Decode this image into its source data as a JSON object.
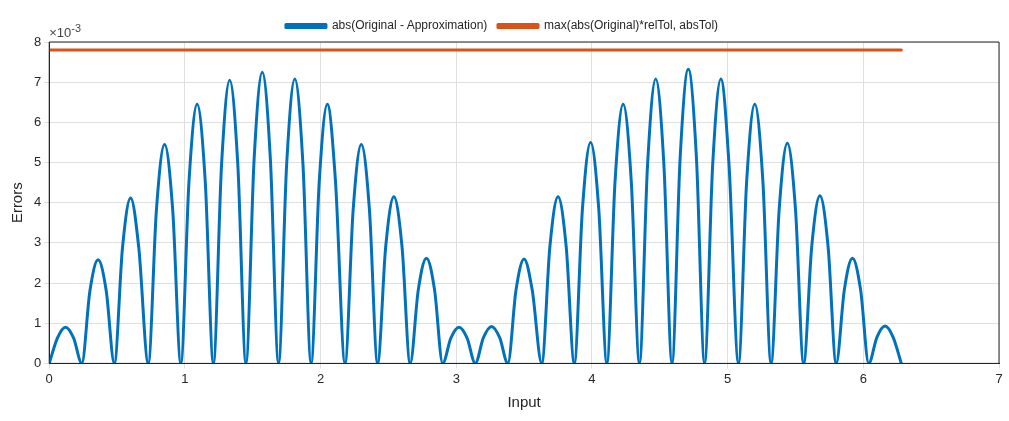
{
  "chart_data": {
    "type": "line",
    "xlabel": "Input",
    "ylabel": "Errors",
    "annotations": [
      "×10$^{-3}$"
    ],
    "xlim": [
      0,
      7
    ],
    "xticks": [
      0,
      1,
      2,
      3,
      4,
      5,
      6,
      7
    ],
    "ylim": [
      0,
      8
    ],
    "yticks": [
      0,
      1,
      2,
      3,
      4,
      5,
      6,
      7,
      8
    ],
    "grid": true,
    "legend": "top",
    "marker": "none",
    "line_style": "solid",
    "series": [
      {
        "name": "abs(Original - Approximation)",
        "color": "#0072bd",
        "x": [
          0,
          0.06,
          0.12,
          0.18,
          0.24,
          0.3,
          0.36,
          0.42,
          0.48,
          0.54,
          0.6,
          0.66,
          0.73,
          0.79,
          0.85,
          0.91,
          0.97,
          1.03,
          1.09,
          1.15,
          1.21,
          1.27,
          1.33,
          1.39,
          1.45,
          1.51,
          1.57,
          1.63,
          1.69,
          1.75,
          1.81,
          1.87,
          1.93,
          1.99,
          2.05,
          2.11,
          2.18,
          2.24,
          2.3,
          2.36,
          2.42,
          2.48,
          2.54,
          2.6,
          2.66,
          2.72,
          2.78,
          2.84,
          2.9,
          2.96,
          3.02,
          3.08,
          3.14,
          3.2,
          3.26,
          3.32,
          3.38,
          3.44,
          3.5,
          3.56,
          3.63,
          3.69,
          3.75,
          3.81,
          3.87,
          3.93,
          3.99,
          4.05,
          4.11,
          4.17,
          4.23,
          4.29,
          4.35,
          4.41,
          4.47,
          4.53,
          4.59,
          4.65,
          4.71,
          4.77,
          4.83,
          4.89,
          4.95,
          5.01,
          5.08,
          5.14,
          5.2,
          5.26,
          5.32,
          5.38,
          5.44,
          5.5,
          5.56,
          5.62,
          5.68,
          5.74,
          5.8,
          5.86,
          5.92,
          5.98,
          6.04,
          6.1,
          6.16,
          6.22,
          6.28
        ],
        "values": [
          0,
          0.63,
          0.9,
          0.63,
          0,
          1.81,
          2.58,
          1.81,
          0,
          2.88,
          4.12,
          2.88,
          0,
          3.82,
          5.45,
          3.82,
          0,
          4.52,
          6.45,
          4.52,
          0,
          4.94,
          7.05,
          4.94,
          0,
          5.08,
          7.25,
          5.08,
          0,
          4.96,
          7.08,
          4.96,
          0,
          4.52,
          6.45,
          4.52,
          0,
          3.82,
          5.45,
          3.82,
          0,
          2.91,
          4.15,
          2.91,
          0,
          1.83,
          2.62,
          1.83,
          0,
          0.63,
          0.9,
          0.63,
          0,
          0.64,
          0.92,
          0.64,
          0,
          1.82,
          2.6,
          1.82,
          0,
          2.91,
          4.15,
          2.91,
          0,
          3.85,
          5.5,
          3.85,
          0,
          4.52,
          6.45,
          4.52,
          0,
          4.96,
          7.08,
          4.96,
          0,
          5.12,
          7.32,
          5.12,
          0,
          4.96,
          7.08,
          4.96,
          0,
          4.52,
          6.45,
          4.52,
          0,
          3.84,
          5.48,
          3.84,
          0,
          2.92,
          4.17,
          2.92,
          0,
          1.83,
          2.62,
          1.83,
          0,
          0.65,
          0.93,
          0.65,
          0
        ]
      },
      {
        "name": "max(abs(Original)*relTol, absTol)",
        "color": "#d95319",
        "x": [
          0,
          6.28
        ],
        "values": [
          7.8,
          7.8
        ]
      }
    ]
  }
}
